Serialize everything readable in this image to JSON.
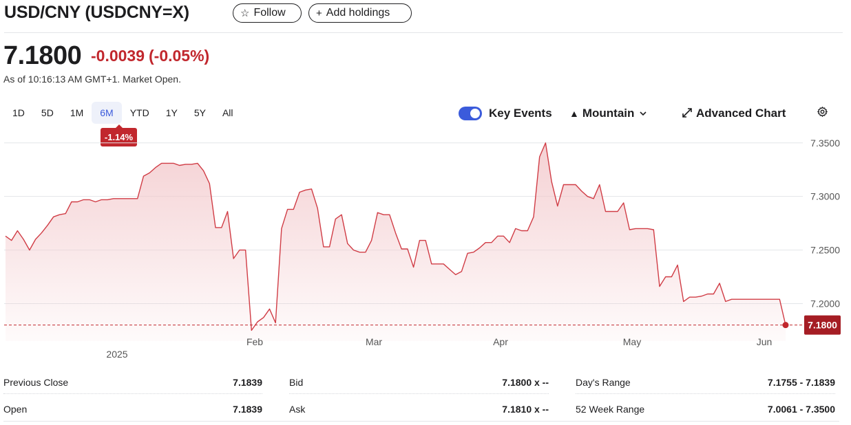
{
  "header": {
    "title": "USD/CNY (USDCNY=X)",
    "follow_label": "Follow",
    "add_holdings_label": "Add holdings",
    "follow_icon": "star-outline-icon",
    "add_icon": "plus-icon"
  },
  "quote": {
    "price": "7.1800",
    "change": "-0.0039",
    "change_pct": "(-0.05%)",
    "as_of": "As of 10:16:13 AM GMT+1. Market Open."
  },
  "colors": {
    "negative": "#c1272d",
    "accent": "#3b5bdb",
    "line": "#d03c45",
    "area_top": "#f3c9cc"
  },
  "range_tabs": [
    "1D",
    "5D",
    "1M",
    "6M",
    "YTD",
    "1Y",
    "5Y",
    "All"
  ],
  "range_selected": "6M",
  "range_change_badge": "-1.14%",
  "toolbar": {
    "key_events_label": "Key Events",
    "key_events_on": true,
    "chart_type_label": "Mountain",
    "advanced_chart_label": "Advanced Chart",
    "settings_icon": "gear-icon",
    "mountain_icon": "mountain-icon",
    "expand_icon": "expand-arrows-icon",
    "chevron_icon": "chevron-down-icon"
  },
  "chart_data": {
    "type": "area",
    "title": "",
    "xlabel": "",
    "ylabel": "",
    "x_tick_labels": [
      "Feb",
      "Mar",
      "Apr",
      "May",
      "Jun"
    ],
    "year_label": "2025",
    "y_tick_labels": [
      "7.3500",
      "7.3000",
      "7.2500",
      "7.2000"
    ],
    "ylim": [
      7.165,
      7.355
    ],
    "grid": true,
    "last_value_label": "7.1800",
    "last_value": 7.18,
    "series": [
      {
        "values": [
          7.263,
          7.259,
          7.268,
          7.26,
          7.25,
          7.26,
          7.266,
          7.273,
          7.281,
          7.283,
          7.284,
          7.295,
          7.295,
          7.297,
          7.297,
          7.295,
          7.297,
          7.297,
          7.298,
          7.298,
          7.298,
          7.298,
          7.298,
          7.319,
          7.322,
          7.327,
          7.331,
          7.331,
          7.331,
          7.329,
          7.33,
          7.33,
          7.331,
          7.324,
          7.312,
          7.271,
          7.271,
          7.286,
          7.242,
          7.25,
          7.25,
          7.175,
          7.183,
          7.187,
          7.195,
          7.182,
          7.27,
          7.288,
          7.288,
          7.304,
          7.306,
          7.307,
          7.289,
          7.253,
          7.253,
          7.279,
          7.283,
          7.256,
          7.25,
          7.248,
          7.248,
          7.259,
          7.285,
          7.283,
          7.283,
          7.266,
          7.251,
          7.251,
          7.234,
          7.259,
          7.259,
          7.237,
          7.237,
          7.237,
          7.232,
          7.227,
          7.23,
          7.247,
          7.248,
          7.252,
          7.257,
          7.257,
          7.263,
          7.263,
          7.257,
          7.27,
          7.268,
          7.268,
          7.281,
          7.337,
          7.35,
          7.314,
          7.291,
          7.311,
          7.311,
          7.311,
          7.305,
          7.3,
          7.298,
          7.311,
          7.286,
          7.286,
          7.286,
          7.294,
          7.269,
          7.27,
          7.27,
          7.27,
          7.269,
          7.216,
          7.225,
          7.225,
          7.236,
          7.202,
          7.206,
          7.206,
          7.207,
          7.209,
          7.209,
          7.219,
          7.202,
          7.204,
          7.204,
          7.204,
          7.204,
          7.204,
          7.204,
          7.204,
          7.204,
          7.204,
          7.18
        ]
      }
    ]
  },
  "stats": {
    "previous_close_label": "Previous Close",
    "previous_close": "7.1839",
    "open_label": "Open",
    "open": "7.1839",
    "bid_label": "Bid",
    "bid": "7.1800 x --",
    "ask_label": "Ask",
    "ask": "7.1810 x --",
    "days_range_label": "Day's Range",
    "days_range": "7.1755 - 7.1839",
    "week52_range_label": "52 Week Range",
    "week52_range": "7.0061 - 7.3500"
  }
}
